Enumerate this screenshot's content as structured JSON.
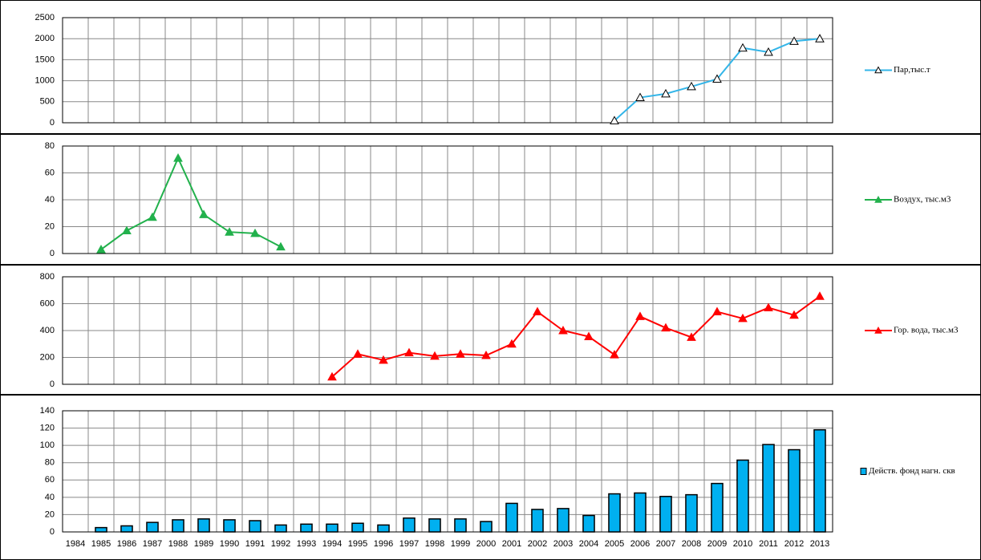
{
  "chart_data": [
    {
      "type": "line",
      "categories": [
        null,
        null,
        null,
        null,
        null,
        null,
        null,
        null,
        null,
        null,
        null,
        null,
        null,
        null,
        null,
        null,
        null,
        null,
        null,
        null,
        null,
        null,
        null,
        null,
        null,
        null,
        null,
        null,
        null,
        null
      ],
      "series": [
        {
          "name": "Пар,тыс.т",
          "color": "#33b5e8",
          "marker": "triangle-open",
          "values": [
            null,
            null,
            null,
            null,
            null,
            null,
            null,
            null,
            null,
            null,
            null,
            null,
            null,
            null,
            null,
            null,
            null,
            null,
            null,
            null,
            null,
            50,
            600,
            690,
            860,
            1040,
            1780,
            1680,
            1940,
            2000
          ]
        }
      ],
      "ylim": [
        0,
        2500
      ],
      "yticks": [
        0,
        500,
        1000,
        1500,
        2000,
        2500
      ],
      "grid": true
    },
    {
      "type": "line",
      "categories": [
        null,
        null,
        null,
        null,
        null,
        null,
        null,
        null,
        null,
        null,
        null,
        null,
        null,
        null,
        null,
        null,
        null,
        null,
        null,
        null,
        null,
        null,
        null,
        null,
        null,
        null,
        null,
        null,
        null,
        null
      ],
      "series": [
        {
          "name": "Воздух, тыс.м3",
          "color": "#22b14c",
          "marker": "triangle",
          "values": [
            null,
            3,
            17,
            27,
            71,
            29,
            16,
            15,
            5,
            null,
            null,
            null,
            null,
            null,
            null,
            null,
            null,
            null,
            null,
            null,
            null,
            null,
            null,
            null,
            null,
            null,
            null,
            null,
            null,
            null
          ]
        }
      ],
      "ylim": [
        0,
        80
      ],
      "yticks": [
        0,
        20,
        40,
        60,
        80
      ],
      "grid": true
    },
    {
      "type": "line",
      "categories": [
        null,
        null,
        null,
        null,
        null,
        null,
        null,
        null,
        null,
        null,
        null,
        null,
        null,
        null,
        null,
        null,
        null,
        null,
        null,
        null,
        null,
        null,
        null,
        null,
        null,
        null,
        null,
        null,
        null,
        null
      ],
      "series": [
        {
          "name": "Гор. вода, тыс.м3",
          "color": "#ff0000",
          "marker": "triangle",
          "values": [
            null,
            null,
            null,
            null,
            null,
            null,
            null,
            null,
            null,
            null,
            55,
            225,
            180,
            235,
            210,
            225,
            215,
            300,
            540,
            400,
            355,
            220,
            505,
            420,
            350,
            540,
            490,
            570,
            515,
            655
          ]
        }
      ],
      "ylim": [
        0,
        800
      ],
      "yticks": [
        0,
        200,
        400,
        600,
        800
      ],
      "grid": true
    },
    {
      "type": "bar",
      "categories": [
        "1984",
        "1985",
        "1986",
        "1987",
        "1988",
        "1989",
        "1990",
        "1991",
        "1992",
        "1993",
        "1994",
        "1995",
        "1996",
        "1997",
        "1998",
        "1999",
        "2000",
        "2001",
        "2002",
        "2003",
        "2004",
        "2005",
        "2006",
        "2007",
        "2008",
        "2009",
        "2010",
        "2011",
        "2012",
        "2013"
      ],
      "series": [
        {
          "name": "Действ. фонд нагн. скв",
          "color": "#00b0f0",
          "values": [
            null,
            5,
            7,
            11,
            14,
            15,
            14,
            13,
            8,
            9,
            9,
            10,
            8,
            16,
            15,
            15,
            12,
            33,
            26,
            27,
            19,
            44,
            45,
            41,
            43,
            56,
            83,
            101,
            95,
            118
          ]
        }
      ],
      "ylim": [
        0,
        140
      ],
      "yticks": [
        0,
        20,
        40,
        60,
        80,
        100,
        120,
        140
      ],
      "grid": true
    }
  ]
}
